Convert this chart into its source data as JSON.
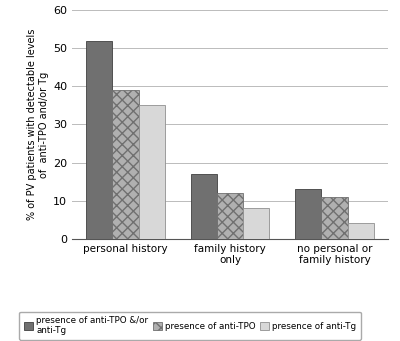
{
  "categories": [
    "personal history",
    "family history\nonly",
    "no personal or\nfamily history"
  ],
  "series": [
    {
      "label": "presence of anti-TPO &/or\nanti-Tg",
      "values": [
        52,
        17,
        13
      ],
      "color": "#707070",
      "hatch": "",
      "edgecolor": "#404040"
    },
    {
      "label": "presence of anti-TPO",
      "values": [
        39,
        12,
        11
      ],
      "color": "#b0b0b0",
      "hatch": "xxx",
      "edgecolor": "#707070"
    },
    {
      "label": "presence of anti-Tg",
      "values": [
        35,
        8,
        4
      ],
      "color": "#d8d8d8",
      "hatch": "",
      "edgecolor": "#909090"
    }
  ],
  "ylabel": "% of PV patients with detectable levels\nof  anti-TPO and/or Tg",
  "ylim": [
    0,
    60
  ],
  "yticks": [
    0,
    10,
    20,
    30,
    40,
    50,
    60
  ],
  "bar_width": 0.25,
  "background_color": "#ffffff",
  "grid_color": "#bbbbbb",
  "legend_labels": [
    "presence of anti-TPO &/or\nanti-Tg",
    "presence of anti-TPO",
    "presence of anti-Tg"
  ]
}
